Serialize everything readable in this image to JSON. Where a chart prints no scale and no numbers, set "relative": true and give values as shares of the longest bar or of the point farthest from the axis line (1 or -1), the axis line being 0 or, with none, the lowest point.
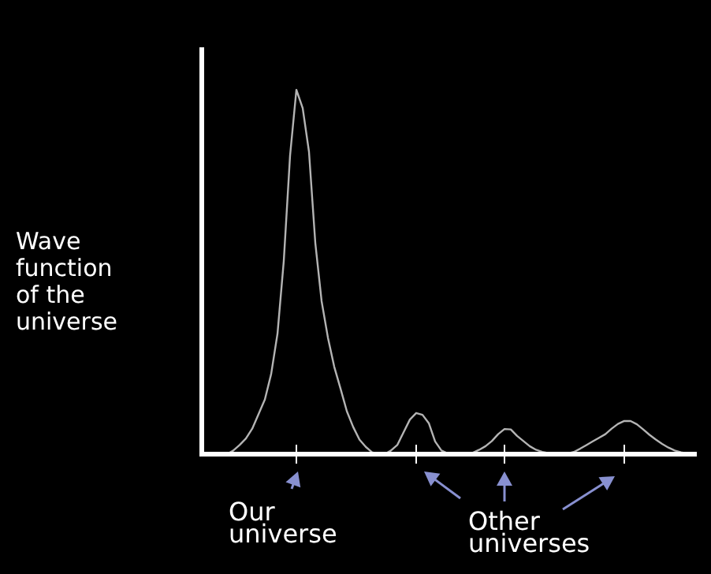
{
  "chart_data": {
    "type": "line",
    "relative": true,
    "ylabel": "Wave function of the universe",
    "categories": [
      null,
      null,
      null,
      null,
      null,
      null,
      null,
      null,
      null,
      null,
      null,
      null,
      null,
      null,
      null,
      null,
      null,
      null,
      null,
      null,
      null,
      null,
      null,
      null,
      null,
      null,
      null,
      null,
      null,
      null,
      null,
      null,
      null,
      null,
      null,
      null,
      null,
      null,
      null,
      null,
      null,
      null,
      null,
      null,
      null,
      null,
      null,
      null,
      null,
      null,
      null,
      null,
      null,
      null,
      null,
      null,
      null,
      null,
      null,
      null,
      null,
      null,
      null,
      null,
      null,
      null,
      null,
      null,
      null,
      null,
      null,
      null,
      null,
      null,
      null,
      null,
      null,
      null,
      null
    ],
    "series": [
      {
        "color": "#b4b4b4",
        "values": [
          0,
          0,
          0,
          0,
          0,
          0.01,
          0.025,
          0.043,
          0.07,
          0.11,
          0.15,
          0.22,
          0.33,
          0.53,
          0.82,
          1,
          0.95,
          0.83,
          0.58,
          0.42,
          0.32,
          0.24,
          0.18,
          0.118,
          0.075,
          0.04,
          0.02,
          0.005,
          0,
          0,
          0.01,
          0.025,
          0.06,
          0.095,
          0.113,
          0.108,
          0.085,
          0.035,
          0.01,
          0.002,
          0,
          0,
          0,
          0.004,
          0.012,
          0.022,
          0.036,
          0.055,
          0.069,
          0.068,
          0.05,
          0.036,
          0.022,
          0.012,
          0.006,
          0.003,
          0,
          0,
          0.002,
          0.006,
          0.015,
          0.025,
          0.035,
          0.045,
          0.055,
          0.07,
          0.083,
          0.091,
          0.091,
          0.082,
          0.068,
          0.053,
          0.04,
          0.028,
          0.018,
          0.01,
          0.005,
          0.002,
          0
        ]
      }
    ],
    "annotations": [
      "Our universe",
      "Other universes"
    ]
  }
}
